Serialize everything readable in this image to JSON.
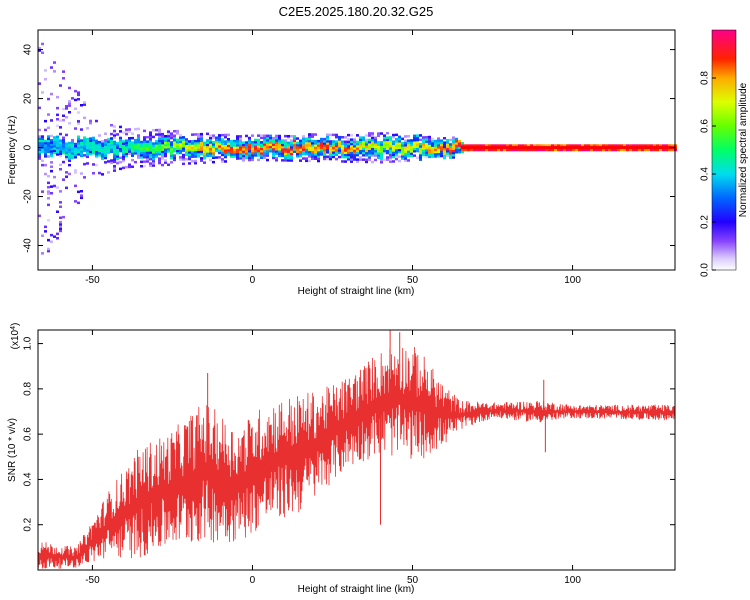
{
  "title": "C2E5.2025.180.20.32.G25",
  "colors": {
    "snr_line": "#e83030",
    "ridge_high": "#ff0000",
    "ridge_mid": "#00ff00"
  },
  "chart_data": [
    {
      "type": "heatmap",
      "xlabel": "Height of straight line (km)",
      "ylabel": "Frequency (Hz)",
      "xlim": [
        -67,
        132
      ],
      "ylim": [
        -50,
        48
      ],
      "x_ticks": [
        "-50",
        "0",
        "50",
        "100"
      ],
      "y_ticks": [
        "-40",
        "-20",
        "0",
        "20",
        "40"
      ],
      "colorbar": {
        "label": "Normalized spectral amplitude",
        "range": [
          0,
          1
        ],
        "ticks": [
          "0.0",
          "0.2",
          "0.4",
          "0.6",
          "0.8"
        ]
      },
      "ridge_center_hz": 0,
      "ridge_amplitude": [
        {
          "x": -65,
          "amp": 0.35
        },
        {
          "x": -50,
          "amp": 0.45
        },
        {
          "x": -40,
          "amp": 0.5
        },
        {
          "x": -30,
          "amp": 0.6
        },
        {
          "x": -20,
          "amp": 0.75
        },
        {
          "x": -10,
          "amp": 0.85
        },
        {
          "x": 0,
          "amp": 0.9
        },
        {
          "x": 10,
          "amp": 0.9
        },
        {
          "x": 20,
          "amp": 0.88
        },
        {
          "x": 30,
          "amp": 0.85
        },
        {
          "x": 40,
          "amp": 0.7
        },
        {
          "x": 50,
          "amp": 0.75
        },
        {
          "x": 60,
          "amp": 0.85
        },
        {
          "x": 65,
          "amp": 0.98
        },
        {
          "x": 132,
          "amp": 0.98
        }
      ],
      "noise_spread_hz": [
        {
          "x": -65,
          "spread": 45
        },
        {
          "x": -50,
          "spread": 12
        },
        {
          "x": -40,
          "spread": 8
        },
        {
          "x": 0,
          "spread": 5
        },
        {
          "x": 40,
          "spread": 6
        },
        {
          "x": 63,
          "spread": 4
        },
        {
          "x": 66,
          "spread": 1
        },
        {
          "x": 132,
          "spread": 1
        }
      ]
    },
    {
      "type": "line",
      "xlabel": "Height of straight line (km)",
      "ylabel": "SNR (10 * v/v)",
      "scale_label": "(x10",
      "scale_exp": "4",
      "scale_close": ")",
      "xlim": [
        -67,
        132
      ],
      "ylim": [
        0,
        1.06
      ],
      "x_ticks": [
        "-50",
        "0",
        "50",
        "100"
      ],
      "y_ticks": [
        "0.2",
        "0.4",
        "0.6",
        "0.8",
        "1.0"
      ],
      "series": [
        {
          "envelope": [
            {
              "x": -67,
              "lo": 0.0,
              "hi": 0.13
            },
            {
              "x": -55,
              "lo": 0.01,
              "hi": 0.1
            },
            {
              "x": -45,
              "lo": 0.05,
              "hi": 0.35
            },
            {
              "x": -35,
              "lo": 0.05,
              "hi": 0.55
            },
            {
              "x": -25,
              "lo": 0.1,
              "hi": 0.62
            },
            {
              "x": -15,
              "lo": 0.12,
              "hi": 0.75
            },
            {
              "x": -5,
              "lo": 0.12,
              "hi": 0.63
            },
            {
              "x": 5,
              "lo": 0.2,
              "hi": 0.75
            },
            {
              "x": 15,
              "lo": 0.25,
              "hi": 0.78
            },
            {
              "x": 22,
              "lo": 0.35,
              "hi": 0.8
            },
            {
              "x": 30,
              "lo": 0.45,
              "hi": 0.86
            },
            {
              "x": 38,
              "lo": 0.5,
              "hi": 0.95
            },
            {
              "x": 45,
              "lo": 0.5,
              "hi": 1.02
            },
            {
              "x": 52,
              "lo": 0.48,
              "hi": 0.98
            },
            {
              "x": 60,
              "lo": 0.55,
              "hi": 0.82
            },
            {
              "x": 65,
              "lo": 0.62,
              "hi": 0.75
            },
            {
              "x": 75,
              "lo": 0.67,
              "hi": 0.74
            },
            {
              "x": 90,
              "lo": 0.65,
              "hi": 0.75
            },
            {
              "x": 100,
              "lo": 0.67,
              "hi": 0.73
            },
            {
              "x": 132,
              "lo": 0.66,
              "hi": 0.73
            }
          ],
          "spikes": [
            {
              "x": -14,
              "y": 0.87
            },
            {
              "x": 43,
              "y": 1.06
            },
            {
              "x": 46,
              "y": 1.05
            },
            {
              "x": 40,
              "y": 0.2
            },
            {
              "x": 91,
              "y": 0.84
            },
            {
              "x": 91.5,
              "y": 0.52
            }
          ]
        }
      ]
    }
  ]
}
